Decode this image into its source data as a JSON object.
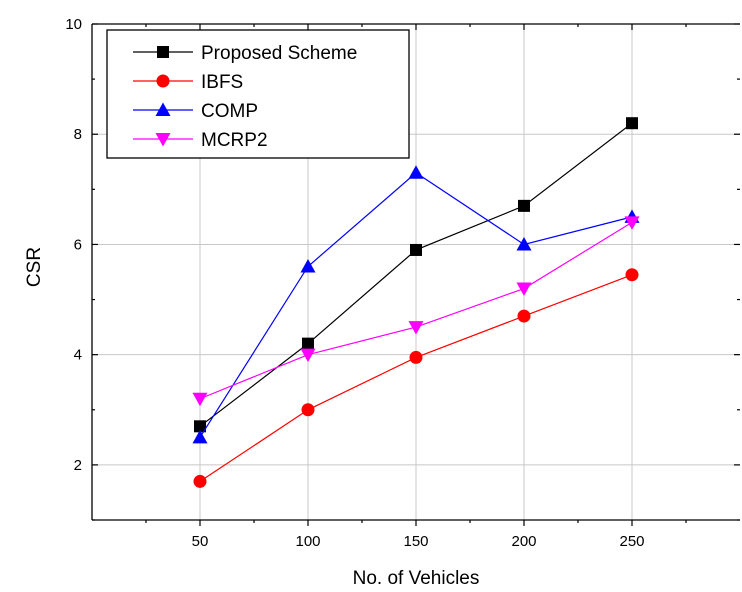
{
  "chart_data": {
    "type": "line",
    "xlabel": "No. of Vehicles",
    "ylabel": "CSR",
    "x": [
      50,
      100,
      150,
      200,
      250
    ],
    "xlim": [
      0,
      300
    ],
    "ylim": [
      1,
      10
    ],
    "xticks": [
      50,
      100,
      150,
      200,
      250
    ],
    "yticks": [
      2,
      4,
      6,
      8,
      10
    ],
    "grid": true,
    "legend_position": "top-left",
    "series": [
      {
        "name": "Proposed Scheme",
        "color": "#000000",
        "marker": "square",
        "values": [
          2.7,
          4.2,
          5.9,
          6.7,
          8.2
        ]
      },
      {
        "name": "IBFS",
        "color": "#ff0000",
        "marker": "circle",
        "values": [
          1.7,
          3.0,
          3.95,
          4.7,
          5.45
        ]
      },
      {
        "name": "COMP",
        "color": "#0000ff",
        "marker": "triangle-up",
        "values": [
          2.5,
          5.6,
          7.3,
          6.0,
          6.5
        ]
      },
      {
        "name": "MCRP2",
        "color": "#ff00ff",
        "marker": "triangle-down",
        "values": [
          3.2,
          4.0,
          4.5,
          5.2,
          6.4
        ]
      }
    ]
  }
}
